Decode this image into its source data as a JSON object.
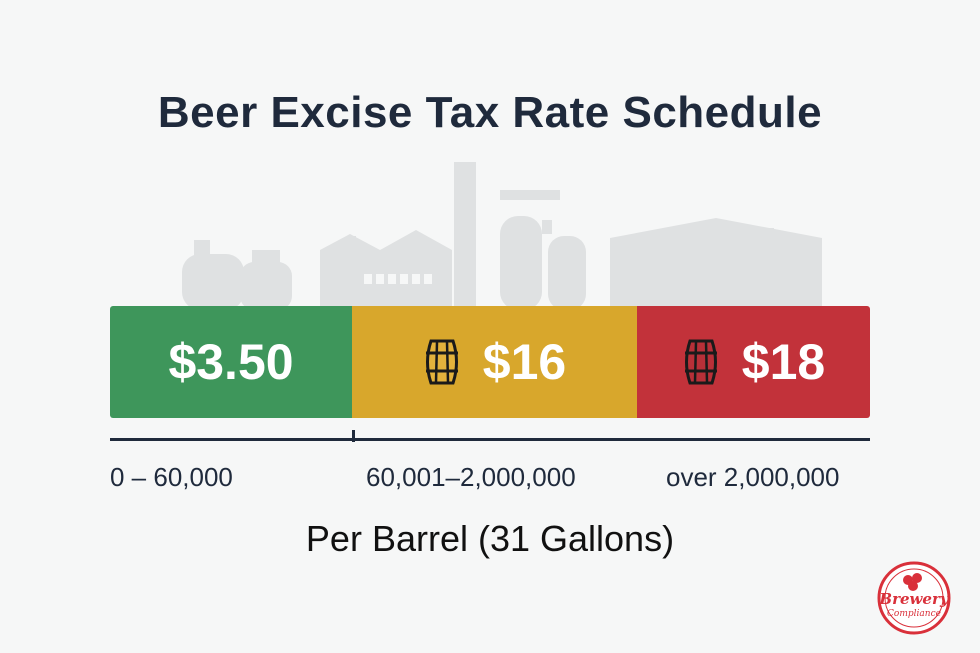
{
  "title": "Beer Excise Tax Rate Schedule",
  "tiers": [
    {
      "rate": "$3.50",
      "range": "0 – 60,000",
      "color": "#3e965b",
      "icon": "none"
    },
    {
      "rate": "$16",
      "range": "60,001–2,000,000",
      "color": "#d8a72c",
      "icon": "barrel-icon"
    },
    {
      "rate": "$18",
      "range": "over 2,000,000",
      "color": "#c2323a",
      "icon": "barrel-icon"
    }
  ],
  "unit_label": "Per Barrel (31 Gallons)",
  "logo": {
    "text_line1": "Brewery",
    "text_line2": "Compliance",
    "color": "#d9303a"
  },
  "background_icon": "brewery-skyline-silhouette"
}
